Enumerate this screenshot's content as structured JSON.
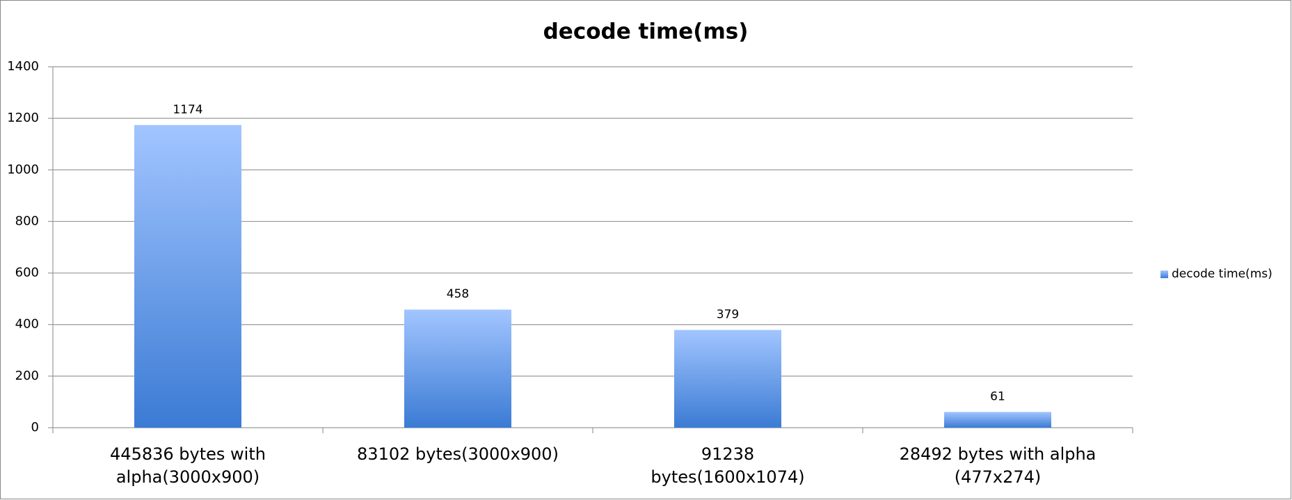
{
  "chart_data": {
    "type": "bar",
    "title": "decode time(ms)",
    "categories": [
      "445836 bytes with alpha(3000x900)",
      "83102 bytes(3000x900)",
      "91238 bytes(1600x1074)",
      "28492 bytes with alpha (477x274)"
    ],
    "series": [
      {
        "name": "decode time(ms)",
        "color": "#5b93e6",
        "values": [
          1174,
          458,
          379,
          61
        ]
      }
    ],
    "ylim": [
      0,
      1400
    ],
    "yticks": [
      0,
      200,
      400,
      600,
      800,
      1000,
      1200,
      1400
    ],
    "grid": true,
    "legend": "right"
  }
}
